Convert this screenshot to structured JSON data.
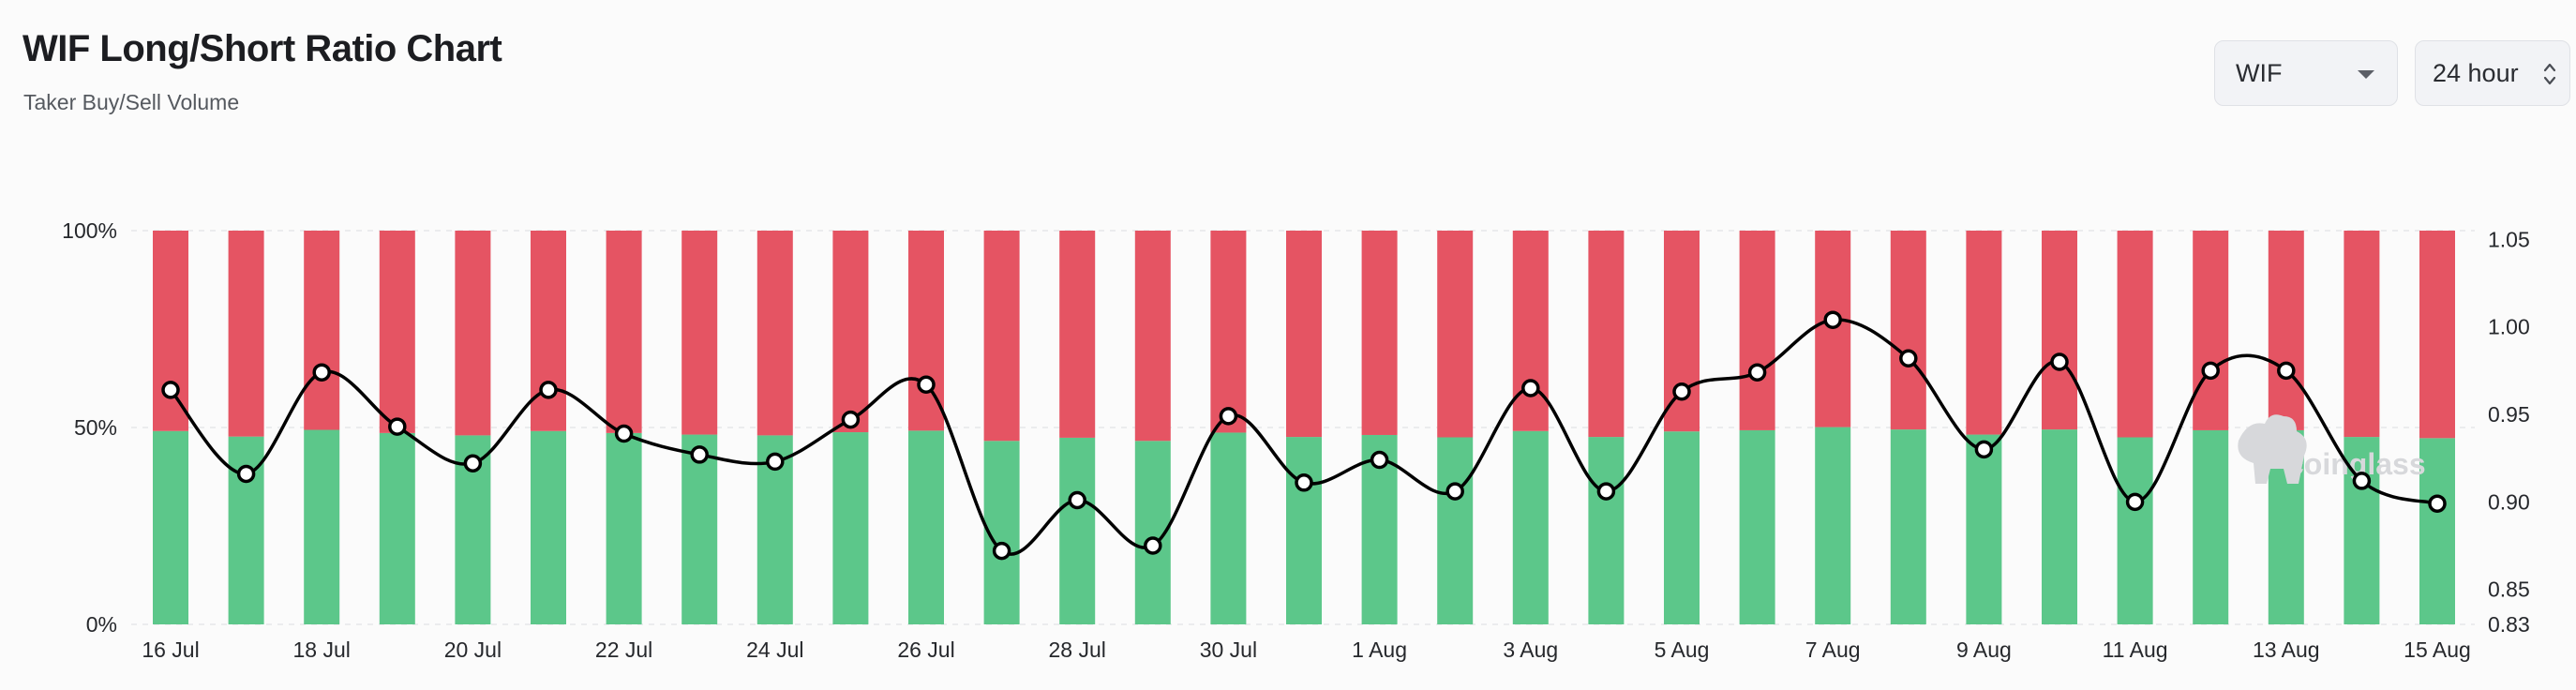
{
  "header": {
    "title": "WIF Long/Short Ratio Chart",
    "subtitle": "Taker Buy/Sell Volume"
  },
  "controls": {
    "symbol_value": "WIF",
    "interval_value": "24 hour"
  },
  "watermark": "coinglass",
  "colors": {
    "long": "#5cc78a",
    "short": "#e55463",
    "line": "#000000",
    "point_fill": "#ffffff"
  },
  "chart_data": {
    "type": "bar",
    "stacked_percent": true,
    "categories": [
      "16 Jul",
      "17 Jul",
      "18 Jul",
      "19 Jul",
      "20 Jul",
      "21 Jul",
      "22 Jul",
      "23 Jul",
      "24 Jul",
      "25 Jul",
      "26 Jul",
      "27 Jul",
      "28 Jul",
      "29 Jul",
      "30 Jul",
      "31 Jul",
      "1 Aug",
      "2 Aug",
      "3 Aug",
      "4 Aug",
      "5 Aug",
      "6 Aug",
      "7 Aug",
      "8 Aug",
      "9 Aug",
      "10 Aug",
      "11 Aug",
      "12 Aug",
      "13 Aug",
      "14 Aug",
      "15 Aug"
    ],
    "x_tick_labels": [
      "16 Jul",
      "18 Jul",
      "20 Jul",
      "22 Jul",
      "24 Jul",
      "26 Jul",
      "28 Jul",
      "30 Jul",
      "1 Aug",
      "3 Aug",
      "5 Aug",
      "7 Aug",
      "9 Aug",
      "11 Aug",
      "13 Aug",
      "15 Aug"
    ],
    "series": [
      {
        "role": "long",
        "axis": "left",
        "values": [
          49.1,
          47.7,
          49.4,
          48.6,
          48.0,
          49.1,
          48.6,
          48.2,
          48.0,
          48.8,
          49.2,
          46.6,
          47.4,
          46.6,
          48.7,
          47.6,
          48.1,
          47.5,
          49.1,
          47.6,
          49.0,
          49.3,
          50.1,
          49.5,
          48.2,
          49.5,
          47.5,
          49.3,
          49.3,
          47.6,
          47.3
        ]
      },
      {
        "role": "short",
        "axis": "left",
        "values": [
          50.9,
          52.3,
          50.6,
          51.4,
          52.0,
          50.9,
          51.4,
          51.8,
          52.0,
          51.2,
          50.8,
          53.4,
          52.6,
          53.4,
          51.3,
          52.4,
          51.9,
          52.5,
          50.9,
          52.4,
          51.0,
          50.7,
          49.9,
          50.5,
          51.8,
          50.5,
          52.5,
          50.7,
          50.7,
          52.4,
          52.7
        ]
      },
      {
        "role": "ratio",
        "type": "line",
        "axis": "right",
        "values": [
          0.964,
          0.916,
          0.974,
          0.943,
          0.922,
          0.964,
          0.939,
          0.927,
          0.923,
          0.947,
          0.967,
          0.872,
          0.901,
          0.875,
          0.949,
          0.911,
          0.924,
          0.906,
          0.965,
          0.906,
          0.963,
          0.974,
          1.004,
          0.982,
          0.93,
          0.98,
          0.9,
          0.975,
          0.975,
          0.912,
          0.899
        ]
      }
    ],
    "y_left": {
      "ticks": [
        "100%",
        "50%",
        "0%"
      ],
      "lim": [
        0,
        100
      ]
    },
    "y_right": {
      "ticks": [
        "1.05",
        "1.00",
        "0.95",
        "0.90",
        "0.85",
        "0.83"
      ],
      "lim": [
        0.83,
        1.055
      ]
    },
    "grid": true,
    "legend": "none"
  }
}
